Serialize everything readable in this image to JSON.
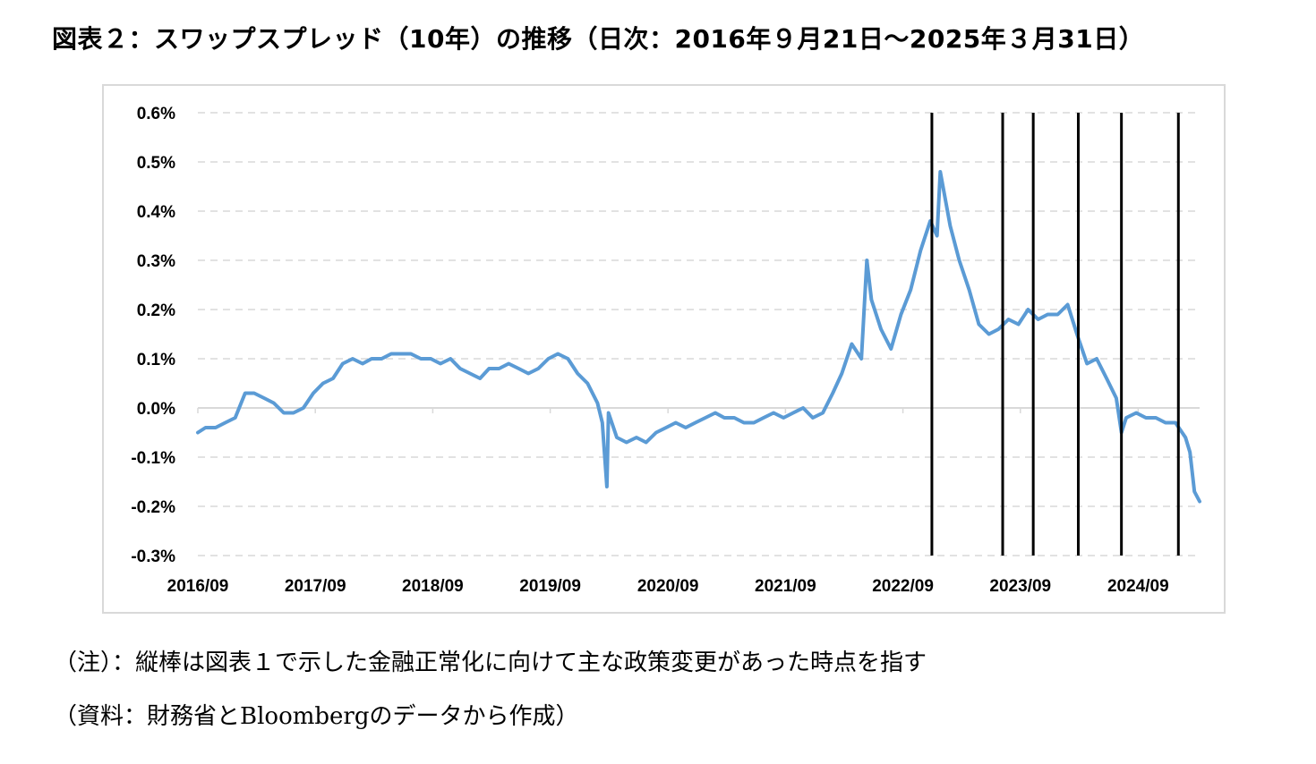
{
  "title": "図表２：スワップスプレッド（10年）の推移（日次：2016年９月21日～2025年３月31日）",
  "notes": {
    "note": "（注）：縦棒は図表１で示した金融正常化に向けて主な政策変更があった時点を指す",
    "source": "（資料：財務省とBloombergのデータから作成）"
  },
  "colors": {
    "series": "#5b9bd5",
    "grid": "#d9d9d9",
    "zero_line": "#d9d9d9",
    "policy_lines": "#000000",
    "frame": "#d9d9d9"
  },
  "chart_data": {
    "type": "line",
    "title": "",
    "xlabel": "",
    "ylabel": "",
    "x_tick_labels": [
      "2016/09",
      "2017/09",
      "2018/09",
      "2019/09",
      "2020/09",
      "2021/09",
      "2022/09",
      "2023/09",
      "2024/09"
    ],
    "y_tick_labels": [
      "0.6%",
      "0.5%",
      "0.4%",
      "0.3%",
      "0.2%",
      "0.1%",
      "0.0%",
      "-0.1%",
      "-0.2%",
      "-0.3%"
    ],
    "ylim": [
      -0.3,
      0.6
    ],
    "xlim": [
      "2016-09-21",
      "2025-03-31"
    ],
    "grid": "horizontal dashed",
    "legend": "none",
    "policy_change_dates": [
      "2022-12-20",
      "2023-07-28",
      "2023-10-31",
      "2024-03-19",
      "2024-07-31",
      "2025-01-24"
    ],
    "series": [
      {
        "x": [
          "2016-09-21",
          "2016-10-15",
          "2016-11-15",
          "2016-12-15",
          "2017-01-15",
          "2017-02-15",
          "2017-03-15",
          "2017-04-15",
          "2017-05-15",
          "2017-06-15",
          "2017-07-15",
          "2017-08-15",
          "2017-09-15",
          "2017-10-15",
          "2017-11-15",
          "2017-12-15",
          "2018-01-15",
          "2018-02-15",
          "2018-03-15",
          "2018-04-15",
          "2018-05-15",
          "2018-06-15",
          "2018-07-15",
          "2018-08-15",
          "2018-09-15",
          "2018-10-15",
          "2018-11-15",
          "2018-12-15",
          "2019-01-15",
          "2019-02-15",
          "2019-03-15",
          "2019-04-15",
          "2019-05-15",
          "2019-06-15",
          "2019-07-15",
          "2019-08-15",
          "2019-09-15",
          "2019-10-15",
          "2019-11-15",
          "2019-12-15",
          "2020-01-15",
          "2020-02-15",
          "2020-03-01",
          "2020-03-15",
          "2020-03-20",
          "2020-04-15",
          "2020-05-15",
          "2020-06-15",
          "2020-07-15",
          "2020-08-15",
          "2020-09-15",
          "2020-10-15",
          "2020-11-15",
          "2020-12-15",
          "2021-01-15",
          "2021-02-15",
          "2021-03-15",
          "2021-04-15",
          "2021-05-15",
          "2021-06-15",
          "2021-07-15",
          "2021-08-15",
          "2021-09-15",
          "2021-10-15",
          "2021-11-15",
          "2021-12-15",
          "2022-01-15",
          "2022-02-15",
          "2022-03-15",
          "2022-04-15",
          "2022-05-15",
          "2022-06-01",
          "2022-06-15",
          "2022-07-15",
          "2022-08-15",
          "2022-09-15",
          "2022-10-15",
          "2022-11-15",
          "2022-12-15",
          "2023-01-05",
          "2023-01-15",
          "2023-02-15",
          "2023-03-15",
          "2023-04-15",
          "2023-05-15",
          "2023-06-15",
          "2023-07-15",
          "2023-08-15",
          "2023-09-15",
          "2023-10-15",
          "2023-11-15",
          "2023-12-15",
          "2024-01-15",
          "2024-02-15",
          "2024-03-15",
          "2024-04-15",
          "2024-05-15",
          "2024-06-15",
          "2024-07-15",
          "2024-07-31",
          "2024-08-15",
          "2024-09-15",
          "2024-10-15",
          "2024-11-15",
          "2024-12-15",
          "2025-01-15",
          "2025-02-15",
          "2025-03-01",
          "2025-03-15",
          "2025-03-31"
        ],
        "values": [
          -0.05,
          -0.04,
          -0.04,
          -0.03,
          -0.02,
          0.03,
          0.03,
          0.02,
          0.01,
          -0.01,
          -0.01,
          0.0,
          0.03,
          0.05,
          0.06,
          0.09,
          0.1,
          0.09,
          0.1,
          0.1,
          0.11,
          0.11,
          0.11,
          0.1,
          0.1,
          0.09,
          0.1,
          0.08,
          0.07,
          0.06,
          0.08,
          0.08,
          0.09,
          0.08,
          0.07,
          0.08,
          0.1,
          0.11,
          0.1,
          0.07,
          0.05,
          0.01,
          -0.03,
          -0.16,
          -0.01,
          -0.06,
          -0.07,
          -0.06,
          -0.07,
          -0.05,
          -0.04,
          -0.03,
          -0.04,
          -0.03,
          -0.02,
          -0.01,
          -0.02,
          -0.02,
          -0.03,
          -0.03,
          -0.02,
          -0.01,
          -0.02,
          -0.01,
          0.0,
          -0.02,
          -0.01,
          0.03,
          0.07,
          0.13,
          0.1,
          0.3,
          0.22,
          0.16,
          0.12,
          0.19,
          0.24,
          0.32,
          0.38,
          0.35,
          0.48,
          0.37,
          0.3,
          0.24,
          0.17,
          0.15,
          0.16,
          0.18,
          0.17,
          0.2,
          0.18,
          0.19,
          0.19,
          0.21,
          0.15,
          0.09,
          0.1,
          0.06,
          0.02,
          -0.05,
          -0.02,
          -0.01,
          -0.02,
          -0.02,
          -0.03,
          -0.03,
          -0.06,
          -0.09,
          -0.17,
          -0.19
        ]
      }
    ]
  }
}
